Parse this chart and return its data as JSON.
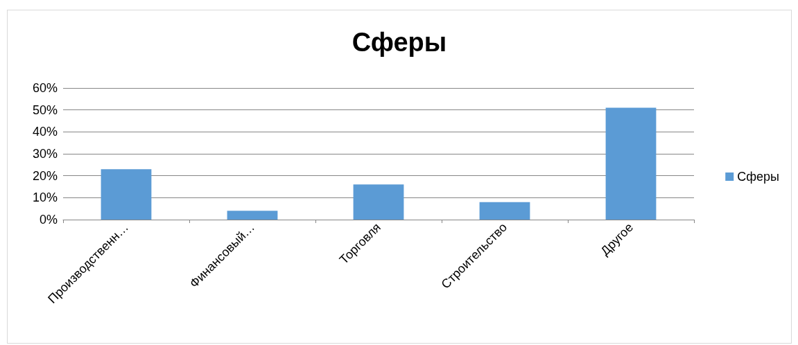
{
  "chart_data": {
    "type": "bar",
    "title": "Сферы",
    "categories": [
      "Производственн…",
      "Финансовый…",
      "Торговля",
      "Строительство",
      "Другое"
    ],
    "series": [
      {
        "name": "Сферы",
        "color": "#5b9bd5",
        "values": [
          23,
          4,
          16,
          8,
          51
        ]
      }
    ],
    "ylim": [
      0,
      60
    ],
    "yticks": [
      {
        "value": 0,
        "label": "0%"
      },
      {
        "value": 10,
        "label": "10%"
      },
      {
        "value": 20,
        "label": "20%"
      },
      {
        "value": 30,
        "label": "30%"
      },
      {
        "value": 40,
        "label": "40%"
      },
      {
        "value": 50,
        "label": "50%"
      },
      {
        "value": 60,
        "label": "60%"
      }
    ],
    "grid": "y",
    "legend": "right"
  }
}
